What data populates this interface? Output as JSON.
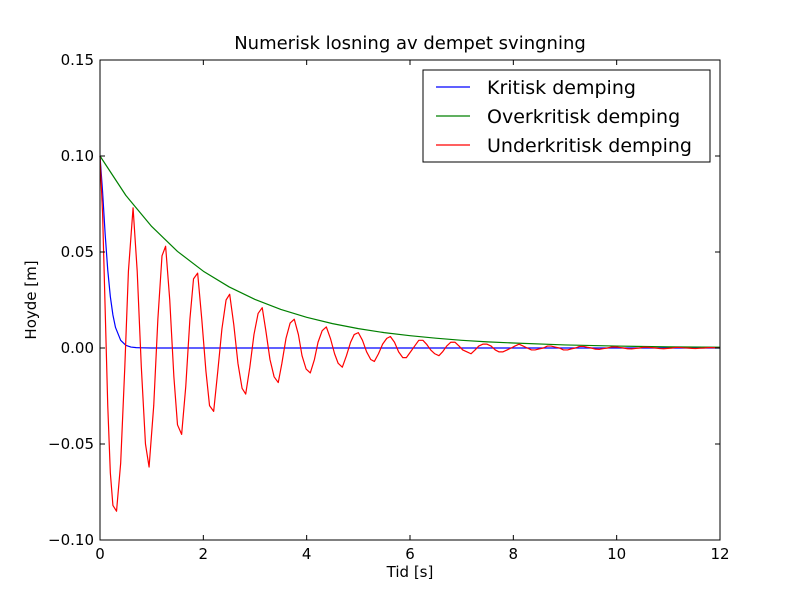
{
  "chart_data": {
    "type": "line",
    "title": "Numerisk losning av dempet svingning",
    "xlabel": "Tid [s]",
    "ylabel": "Hoyde [m]",
    "xlim": [
      0,
      12
    ],
    "ylim": [
      -0.1,
      0.15
    ],
    "xticks": [
      0,
      2,
      4,
      6,
      8,
      10,
      12
    ],
    "yticks": [
      -0.1,
      -0.05,
      0.0,
      0.05,
      0.1,
      0.15
    ],
    "xtick_labels": [
      "0",
      "2",
      "4",
      "6",
      "8",
      "10",
      "12"
    ],
    "ytick_labels": [
      "−0.10",
      "−0.05",
      "0.00",
      "0.05",
      "0.10",
      "0.15"
    ],
    "grid": false,
    "legend_position": "top-right",
    "series": [
      {
        "name": "Kritisk demping",
        "color": "#0000ff",
        "x": [
          0,
          0.05,
          0.1,
          0.15,
          0.2,
          0.25,
          0.3,
          0.4,
          0.5,
          0.6,
          0.7,
          0.8,
          1.0,
          1.5,
          2,
          4,
          6,
          8,
          10,
          12
        ],
        "y": [
          0.1,
          0.0814,
          0.0592,
          0.0406,
          0.0268,
          0.0172,
          0.0107,
          0.004,
          0.0014,
          0.0005,
          0.0002,
          0.0001,
          0.0,
          0.0,
          0.0,
          0.0,
          0.0,
          0.0,
          0.0,
          0.0
        ]
      },
      {
        "name": "Overkritisk demping",
        "color": "#008000",
        "x": [
          0,
          0.5,
          1,
          1.5,
          2,
          2.5,
          3,
          3.5,
          4,
          4.5,
          5,
          5.5,
          6,
          6.5,
          7,
          7.5,
          8,
          9,
          10,
          11,
          12
        ],
        "y": [
          0.1,
          0.0795,
          0.0633,
          0.0503,
          0.04,
          0.0318,
          0.0253,
          0.0201,
          0.016,
          0.0127,
          0.0101,
          0.008,
          0.0064,
          0.0051,
          0.004,
          0.0032,
          0.0026,
          0.0016,
          0.001,
          0.0006,
          0.0004
        ]
      },
      {
        "name": "Underkritisk demping",
        "color": "#ff0000",
        "x": [
          0,
          0.05,
          0.1,
          0.15,
          0.2,
          0.25,
          0.32,
          0.4,
          0.48,
          0.55,
          0.64,
          0.72,
          0.8,
          0.88,
          0.95,
          1.04,
          1.12,
          1.2,
          1.27,
          1.35,
          1.43,
          1.5,
          1.58,
          1.66,
          1.74,
          1.81,
          1.89,
          1.97,
          2.05,
          2.12,
          2.2,
          2.28,
          2.36,
          2.44,
          2.51,
          2.59,
          2.67,
          2.75,
          2.82,
          2.9,
          2.98,
          3.06,
          3.14,
          3.21,
          3.29,
          3.37,
          3.45,
          3.52,
          3.6,
          3.68,
          3.76,
          3.84,
          3.91,
          3.99,
          4.07,
          4.15,
          4.22,
          4.3,
          4.38,
          4.46,
          4.54,
          4.61,
          4.69,
          4.77,
          4.85,
          4.92,
          5.0,
          5.08,
          5.16,
          5.24,
          5.31,
          5.39,
          5.47,
          5.55,
          5.62,
          5.7,
          5.78,
          5.86,
          5.93,
          6.01,
          6.09,
          6.17,
          6.25,
          6.32,
          6.4,
          6.48,
          6.56,
          6.63,
          6.71,
          6.79,
          6.87,
          6.95,
          7.02,
          7.1,
          7.18,
          7.26,
          7.33,
          7.41,
          7.49,
          7.57,
          7.65,
          7.72,
          7.8,
          7.88,
          7.96,
          8.03,
          8.11,
          8.19,
          8.27,
          8.35,
          8.42,
          8.5,
          8.58,
          8.66,
          8.73,
          8.81,
          8.89,
          8.97,
          9.05,
          9.12,
          9.2,
          9.28,
          9.36,
          9.43,
          9.51,
          9.59,
          9.67,
          9.75,
          9.82,
          9.9,
          9.98,
          10.06,
          10.13,
          10.21,
          10.29,
          10.37,
          10.44,
          10.52,
          10.6,
          10.68,
          10.76,
          10.83,
          10.91,
          10.99,
          11.07,
          11.14,
          11.22,
          11.3,
          11.38,
          11.46,
          11.53,
          11.61,
          11.69,
          11.77,
          11.84,
          11.92,
          12.0
        ],
        "y": [
          0.1,
          0.07,
          0.02,
          -0.03,
          -0.065,
          -0.082,
          -0.085,
          -0.06,
          -0.01,
          0.04,
          0.073,
          0.04,
          -0.01,
          -0.05,
          -0.062,
          -0.03,
          0.015,
          0.048,
          0.053,
          0.025,
          -0.015,
          -0.04,
          -0.045,
          -0.02,
          0.015,
          0.036,
          0.039,
          0.015,
          -0.012,
          -0.03,
          -0.033,
          -0.012,
          0.01,
          0.025,
          0.028,
          0.012,
          -0.008,
          -0.021,
          -0.024,
          -0.01,
          0.007,
          0.018,
          0.021,
          0.009,
          -0.006,
          -0.015,
          -0.018,
          -0.008,
          0.005,
          0.013,
          0.015,
          0.007,
          -0.004,
          -0.011,
          -0.013,
          -0.006,
          0.003,
          0.009,
          0.011,
          0.005,
          -0.003,
          -0.008,
          -0.01,
          -0.004,
          0.003,
          0.007,
          0.008,
          0.004,
          -0.002,
          -0.006,
          -0.007,
          -0.003,
          0.002,
          0.005,
          0.006,
          0.003,
          -0.002,
          -0.005,
          -0.005,
          -0.002,
          0.001,
          0.004,
          0.004,
          0.002,
          -0.001,
          -0.003,
          -0.004,
          -0.002,
          0.001,
          0.003,
          0.003,
          0.001,
          -0.001,
          -0.002,
          -0.003,
          -0.001,
          0.001,
          0.002,
          0.002,
          0.001,
          -0.001,
          -0.002,
          -0.002,
          -0.001,
          0.0,
          0.001,
          0.002,
          0.001,
          0.0,
          -0.001,
          -0.001,
          -0.0005,
          0.0,
          0.001,
          0.001,
          0.0005,
          0.0,
          -0.001,
          -0.001,
          -0.0005,
          0.0,
          0.0008,
          0.0008,
          0.0004,
          0.0,
          -0.0006,
          -0.0007,
          -0.0003,
          0.0,
          0.0005,
          0.0006,
          0.0003,
          0.0,
          -0.0004,
          -0.0005,
          -0.0002,
          0.0,
          0.0004,
          0.0004,
          0.0002,
          0.0,
          -0.0003,
          -0.0004,
          -0.0002,
          0.0,
          0.0003,
          0.0003,
          0.0001,
          0.0,
          -0.0002,
          -0.0003,
          -0.0001,
          0.0,
          0.0002,
          0.0002,
          0.0001,
          0.0
        ]
      }
    ]
  }
}
